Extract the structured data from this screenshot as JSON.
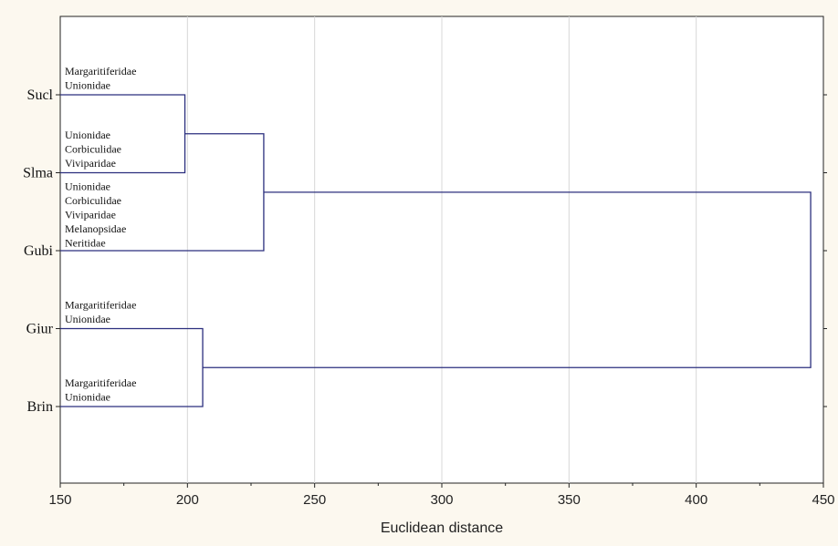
{
  "chart_data": {
    "type": "dendrogram",
    "xlabel": "Euclidean distance",
    "xlim": [
      150,
      450
    ],
    "xticks": [
      150,
      200,
      250,
      300,
      350,
      400,
      450
    ],
    "grid": "vertical",
    "line_color": "#2b2f7e",
    "leaves": [
      "Sucl",
      "Slma",
      "Gubi",
      "Giur",
      "Brin"
    ],
    "merges": [
      {
        "left": "Sucl",
        "right": "Slma",
        "distance": 199
      },
      {
        "left": "Sucl+Slma",
        "right": "Gubi",
        "distance": 230
      },
      {
        "left": "Giur",
        "right": "Brin",
        "distance": 206
      },
      {
        "left": "Sucl+Slma+Gubi",
        "right": "Giur+Brin",
        "distance": 445
      }
    ],
    "annotations": [
      {
        "leaf": "Sucl",
        "lines": [
          "Margaritiferidae",
          "Unionidae"
        ]
      },
      {
        "leaf": "Slma",
        "lines": [
          "Unionidae",
          "Corbiculidae",
          "Viviparidae"
        ]
      },
      {
        "leaf": "Gubi",
        "lines": [
          "Unionidae",
          "Corbiculidae",
          "Viviparidae",
          "Melanopsidae",
          "Neritidae"
        ]
      },
      {
        "leaf": "Giur",
        "lines": [
          "Margaritiferidae",
          "Unionidae"
        ]
      },
      {
        "leaf": "Brin",
        "lines": [
          "Margaritiferidae",
          "Unionidae"
        ]
      }
    ]
  }
}
